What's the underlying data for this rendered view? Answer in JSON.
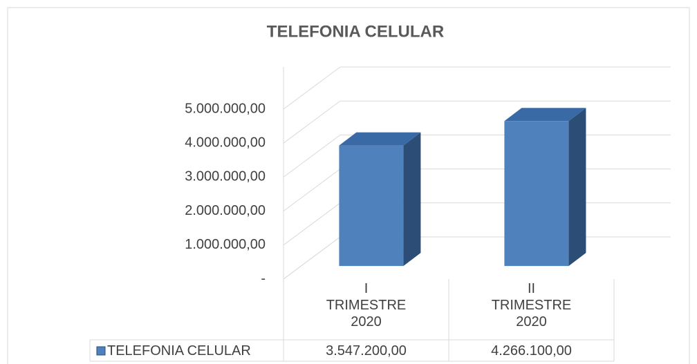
{
  "chart_data": {
    "type": "bar3d",
    "title": "TELEFONIA CELULAR",
    "categories": [
      "I TRIMESTRE 2020",
      "II TRIMESTRE 2020"
    ],
    "series": [
      {
        "name": "TELEFONIA CELULAR",
        "color": "#4f81bd",
        "values": [
          3547200,
          4266100
        ],
        "value_labels": [
          "3.547.200,00",
          "4.266.100,00"
        ]
      }
    ],
    "ylim": [
      0,
      5000000
    ],
    "yticks": [
      {
        "value": 0,
        "label": "-"
      },
      {
        "value": 1000000,
        "label": "1.000.000,00"
      },
      {
        "value": 2000000,
        "label": "2.000.000,00"
      },
      {
        "value": 3000000,
        "label": "3.000.000,00"
      },
      {
        "value": 4000000,
        "label": "4.000.000,00"
      },
      {
        "value": 5000000,
        "label": "5.000.000,00"
      }
    ],
    "grid": true,
    "data_table": true
  }
}
